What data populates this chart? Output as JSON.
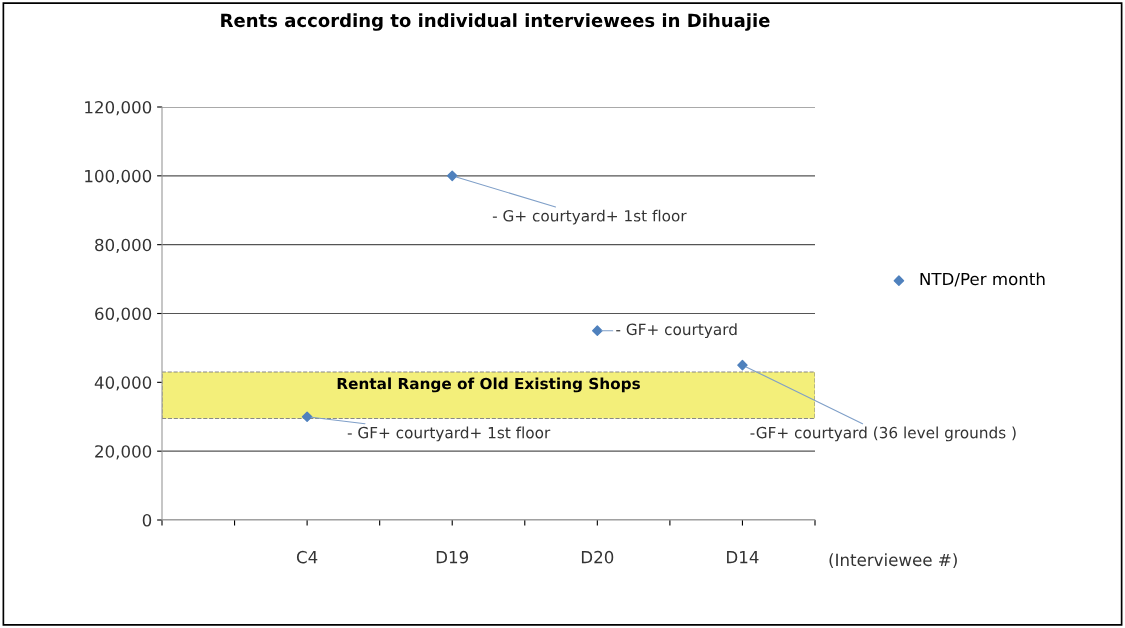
{
  "chart_data": {
    "type": "scatter",
    "title": "Rents according to individual interviewees in Dihuajie",
    "xlabel": "(Interviewee #)",
    "categories": [
      null,
      null,
      "C4",
      null,
      "D19",
      null,
      "D20",
      null,
      "D14",
      null
    ],
    "series": [
      {
        "name": "NTD/Per month",
        "color": "#4f81bd",
        "values": [
          null,
          null,
          30000,
          null,
          100000,
          null,
          55000,
          null,
          45000,
          null
        ]
      }
    ],
    "ylim": [
      0,
      120000
    ],
    "yticks": [
      {
        "value": 0,
        "label": "0"
      },
      {
        "value": 20000,
        "label": "20,000"
      },
      {
        "value": 40000,
        "label": "40,000"
      },
      {
        "value": 60000,
        "label": "60,000"
      },
      {
        "value": 80000,
        "label": "80,000"
      },
      {
        "value": 100000,
        "label": "100,000"
      },
      {
        "value": 120000,
        "label": "120,000"
      }
    ],
    "grid": "y",
    "legend": "right",
    "marker": "diamond",
    "bands": [
      {
        "axis": "y",
        "from": 29500,
        "to": 43000,
        "label": "Rental Range of Old Existing Shops",
        "color": "#f3ef7a"
      }
    ],
    "annotations": [
      {
        "text": "- GF+ courtyard+ 1st floor",
        "x": "C4",
        "y": 30000
      },
      {
        "text": "- G+ courtyard+ 1st floor",
        "x": "D19",
        "y": 100000
      },
      {
        "text": "- GF+ courtyard",
        "x": "D20",
        "y": 55000
      },
      {
        "text": "-GF+ courtyard (36 level grounds )",
        "x": "D14",
        "y": 45000
      }
    ]
  }
}
